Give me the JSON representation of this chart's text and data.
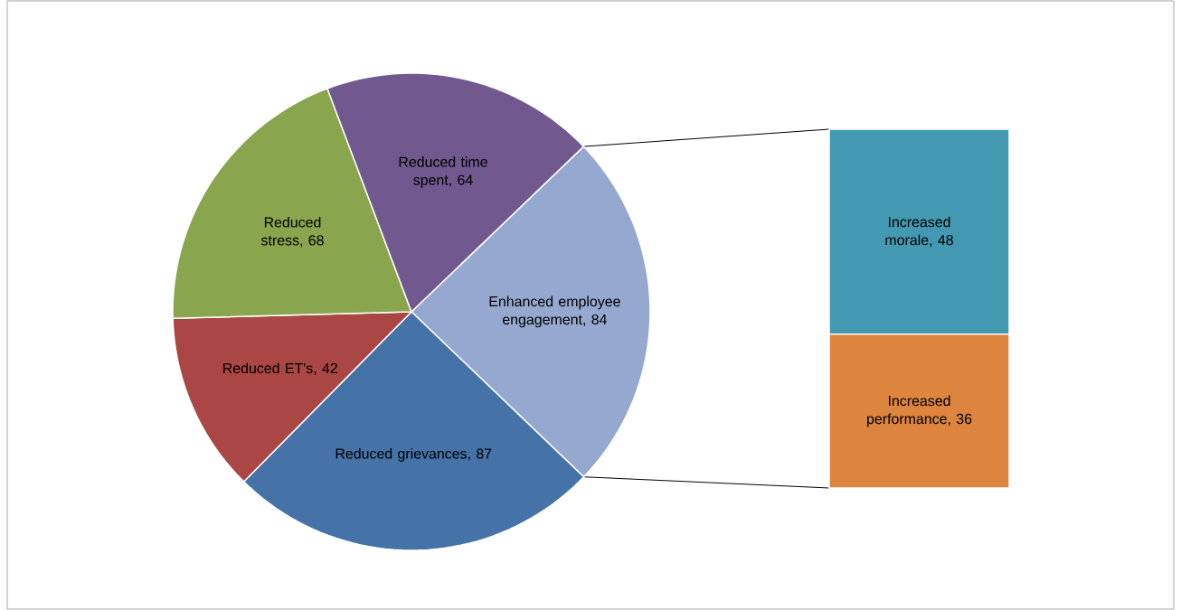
{
  "chart_data": [
    {
      "type": "pie",
      "categories": [
        "Enhanced employee engagement",
        "Reduced grievances",
        "Reduced ET's",
        "Reduced stress",
        "Reduced time spent"
      ],
      "values": [
        84,
        87,
        42,
        68,
        64
      ],
      "value_labels": [
        ", 84",
        ", 87",
        ", 42",
        ", 68",
        ", 64"
      ],
      "colors": [
        "#95a9d0",
        "#4572a7",
        "#aa4643",
        "#89a54e",
        "#71588f"
      ]
    },
    {
      "type": "bar",
      "stacked": true,
      "categories": [
        null
      ],
      "series": [
        {
          "name": "Increased performance",
          "color": "#dd843e",
          "values": [
            36
          ],
          "value_labels": [
            ", 36"
          ]
        },
        {
          "name": "Increased morale",
          "color": "#4399b1",
          "values": [
            48
          ],
          "value_labels": [
            ", 48"
          ]
        }
      ]
    }
  ]
}
